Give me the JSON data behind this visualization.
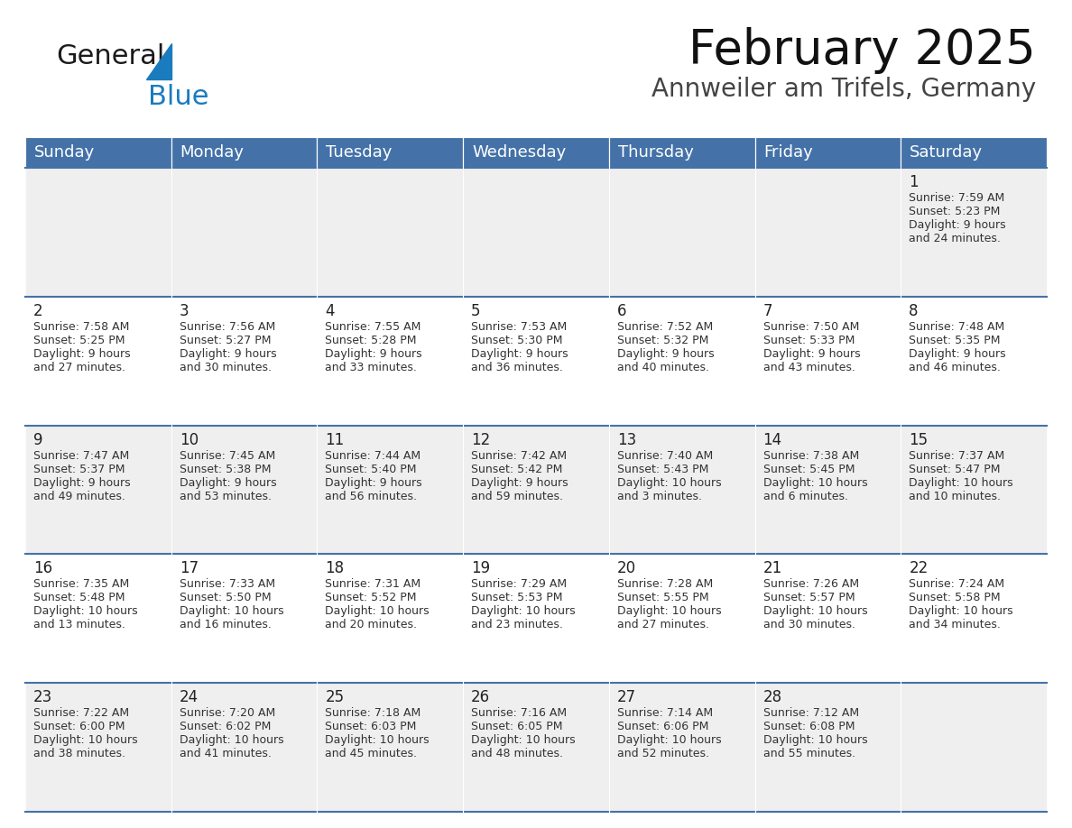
{
  "title": "February 2025",
  "subtitle": "Annweiler am Trifels, Germany",
  "header_bg": "#4472a8",
  "header_text_color": "#ffffff",
  "cell_bg_even": "#efefef",
  "cell_bg_odd": "#ffffff",
  "line_color": "#4472a8",
  "day_headers": [
    "Sunday",
    "Monday",
    "Tuesday",
    "Wednesday",
    "Thursday",
    "Friday",
    "Saturday"
  ],
  "days": [
    {
      "day": 1,
      "col": 6,
      "row": 0,
      "sunrise": "7:59 AM",
      "sunset": "5:23 PM",
      "daylight_line1": "Daylight: 9 hours",
      "daylight_line2": "and 24 minutes."
    },
    {
      "day": 2,
      "col": 0,
      "row": 1,
      "sunrise": "7:58 AM",
      "sunset": "5:25 PM",
      "daylight_line1": "Daylight: 9 hours",
      "daylight_line2": "and 27 minutes."
    },
    {
      "day": 3,
      "col": 1,
      "row": 1,
      "sunrise": "7:56 AM",
      "sunset": "5:27 PM",
      "daylight_line1": "Daylight: 9 hours",
      "daylight_line2": "and 30 minutes."
    },
    {
      "day": 4,
      "col": 2,
      "row": 1,
      "sunrise": "7:55 AM",
      "sunset": "5:28 PM",
      "daylight_line1": "Daylight: 9 hours",
      "daylight_line2": "and 33 minutes."
    },
    {
      "day": 5,
      "col": 3,
      "row": 1,
      "sunrise": "7:53 AM",
      "sunset": "5:30 PM",
      "daylight_line1": "Daylight: 9 hours",
      "daylight_line2": "and 36 minutes."
    },
    {
      "day": 6,
      "col": 4,
      "row": 1,
      "sunrise": "7:52 AM",
      "sunset": "5:32 PM",
      "daylight_line1": "Daylight: 9 hours",
      "daylight_line2": "and 40 minutes."
    },
    {
      "day": 7,
      "col": 5,
      "row": 1,
      "sunrise": "7:50 AM",
      "sunset": "5:33 PM",
      "daylight_line1": "Daylight: 9 hours",
      "daylight_line2": "and 43 minutes."
    },
    {
      "day": 8,
      "col": 6,
      "row": 1,
      "sunrise": "7:48 AM",
      "sunset": "5:35 PM",
      "daylight_line1": "Daylight: 9 hours",
      "daylight_line2": "and 46 minutes."
    },
    {
      "day": 9,
      "col": 0,
      "row": 2,
      "sunrise": "7:47 AM",
      "sunset": "5:37 PM",
      "daylight_line1": "Daylight: 9 hours",
      "daylight_line2": "and 49 minutes."
    },
    {
      "day": 10,
      "col": 1,
      "row": 2,
      "sunrise": "7:45 AM",
      "sunset": "5:38 PM",
      "daylight_line1": "Daylight: 9 hours",
      "daylight_line2": "and 53 minutes."
    },
    {
      "day": 11,
      "col": 2,
      "row": 2,
      "sunrise": "7:44 AM",
      "sunset": "5:40 PM",
      "daylight_line1": "Daylight: 9 hours",
      "daylight_line2": "and 56 minutes."
    },
    {
      "day": 12,
      "col": 3,
      "row": 2,
      "sunrise": "7:42 AM",
      "sunset": "5:42 PM",
      "daylight_line1": "Daylight: 9 hours",
      "daylight_line2": "and 59 minutes."
    },
    {
      "day": 13,
      "col": 4,
      "row": 2,
      "sunrise": "7:40 AM",
      "sunset": "5:43 PM",
      "daylight_line1": "Daylight: 10 hours",
      "daylight_line2": "and 3 minutes."
    },
    {
      "day": 14,
      "col": 5,
      "row": 2,
      "sunrise": "7:38 AM",
      "sunset": "5:45 PM",
      "daylight_line1": "Daylight: 10 hours",
      "daylight_line2": "and 6 minutes."
    },
    {
      "day": 15,
      "col": 6,
      "row": 2,
      "sunrise": "7:37 AM",
      "sunset": "5:47 PM",
      "daylight_line1": "Daylight: 10 hours",
      "daylight_line2": "and 10 minutes."
    },
    {
      "day": 16,
      "col": 0,
      "row": 3,
      "sunrise": "7:35 AM",
      "sunset": "5:48 PM",
      "daylight_line1": "Daylight: 10 hours",
      "daylight_line2": "and 13 minutes."
    },
    {
      "day": 17,
      "col": 1,
      "row": 3,
      "sunrise": "7:33 AM",
      "sunset": "5:50 PM",
      "daylight_line1": "Daylight: 10 hours",
      "daylight_line2": "and 16 minutes."
    },
    {
      "day": 18,
      "col": 2,
      "row": 3,
      "sunrise": "7:31 AM",
      "sunset": "5:52 PM",
      "daylight_line1": "Daylight: 10 hours",
      "daylight_line2": "and 20 minutes."
    },
    {
      "day": 19,
      "col": 3,
      "row": 3,
      "sunrise": "7:29 AM",
      "sunset": "5:53 PM",
      "daylight_line1": "Daylight: 10 hours",
      "daylight_line2": "and 23 minutes."
    },
    {
      "day": 20,
      "col": 4,
      "row": 3,
      "sunrise": "7:28 AM",
      "sunset": "5:55 PM",
      "daylight_line1": "Daylight: 10 hours",
      "daylight_line2": "and 27 minutes."
    },
    {
      "day": 21,
      "col": 5,
      "row": 3,
      "sunrise": "7:26 AM",
      "sunset": "5:57 PM",
      "daylight_line1": "Daylight: 10 hours",
      "daylight_line2": "and 30 minutes."
    },
    {
      "day": 22,
      "col": 6,
      "row": 3,
      "sunrise": "7:24 AM",
      "sunset": "5:58 PM",
      "daylight_line1": "Daylight: 10 hours",
      "daylight_line2": "and 34 minutes."
    },
    {
      "day": 23,
      "col": 0,
      "row": 4,
      "sunrise": "7:22 AM",
      "sunset": "6:00 PM",
      "daylight_line1": "Daylight: 10 hours",
      "daylight_line2": "and 38 minutes."
    },
    {
      "day": 24,
      "col": 1,
      "row": 4,
      "sunrise": "7:20 AM",
      "sunset": "6:02 PM",
      "daylight_line1": "Daylight: 10 hours",
      "daylight_line2": "and 41 minutes."
    },
    {
      "day": 25,
      "col": 2,
      "row": 4,
      "sunrise": "7:18 AM",
      "sunset": "6:03 PM",
      "daylight_line1": "Daylight: 10 hours",
      "daylight_line2": "and 45 minutes."
    },
    {
      "day": 26,
      "col": 3,
      "row": 4,
      "sunrise": "7:16 AM",
      "sunset": "6:05 PM",
      "daylight_line1": "Daylight: 10 hours",
      "daylight_line2": "and 48 minutes."
    },
    {
      "day": 27,
      "col": 4,
      "row": 4,
      "sunrise": "7:14 AM",
      "sunset": "6:06 PM",
      "daylight_line1": "Daylight: 10 hours",
      "daylight_line2": "and 52 minutes."
    },
    {
      "day": 28,
      "col": 5,
      "row": 4,
      "sunrise": "7:12 AM",
      "sunset": "6:08 PM",
      "daylight_line1": "Daylight: 10 hours",
      "daylight_line2": "and 55 minutes."
    }
  ],
  "num_rows": 5,
  "num_cols": 7,
  "logo_text_general": "General",
  "logo_text_blue": "Blue",
  "logo_color_general": "#1a1a1a",
  "logo_color_blue": "#1a7bbf",
  "logo_triangle_color": "#1a7bbf",
  "title_fontsize": 38,
  "subtitle_fontsize": 20,
  "day_header_fontsize": 13,
  "day_num_fontsize": 12,
  "cell_text_fontsize": 9
}
